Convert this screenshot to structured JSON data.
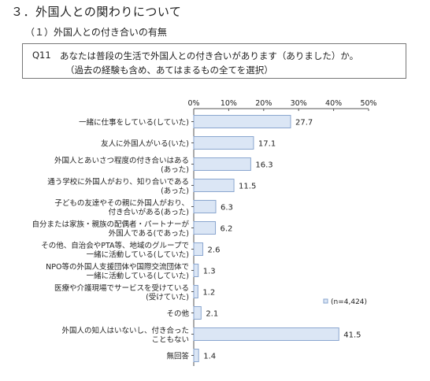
{
  "section_title": "３．外国人との関わりについて",
  "subsection_title": "（１）外国人との付き合いの有無",
  "question": {
    "number": "Q11",
    "text": "あなたは普段の生活で外国人との付き合いがあります（ありました）か。",
    "note": "（過去の経験も含め、あてはまるもの全てを選択）"
  },
  "chart_data": {
    "type": "bar",
    "orientation": "horizontal",
    "categories": [
      [
        "一緒に仕事をしている(していた)"
      ],
      [
        "友人に外国人がいる(いた)"
      ],
      [
        "外国人とあいさつ程度の付き合いはある",
        "(あった)"
      ],
      [
        "通う学校に外国人がおり、知り合いである",
        "(あった)"
      ],
      [
        "子どもの友達やその親に外国人がおり、",
        "付き合いがある(あった)"
      ],
      [
        "自分または家族・親族の配偶者・パートナーが",
        "外国人である(であった)"
      ],
      [
        "その他、自治会やPTA等、地域のグループで",
        "一緒に活動している(していた)"
      ],
      [
        "NPO等の外国人支援団体や国際交流団体で",
        "一緒に活動している(していた)"
      ],
      [
        "医療や介護現場でサービスを受けている",
        "(受けていた)"
      ],
      [
        "その他"
      ],
      [
        "外国人の知人はいないし、付き合った",
        "こともない"
      ],
      [
        "無回答"
      ]
    ],
    "values": [
      27.7,
      17.1,
      16.3,
      11.5,
      6.3,
      6.2,
      2.6,
      1.3,
      1.2,
      2.1,
      41.5,
      1.4
    ],
    "value_labels": [
      "27.7",
      "17.1",
      "16.3",
      "11.5",
      "6.3",
      "6.2",
      "2.6",
      "1.3",
      "1.2",
      "2.1",
      "41.5",
      "1.4"
    ],
    "x_ticks": [
      "0%",
      "10%",
      "20%",
      "30%",
      "40%",
      "50%"
    ],
    "xlim": [
      0,
      50
    ],
    "legend": "(n=4,424)",
    "legend_position": "right",
    "bar_color": "#dbe6f5",
    "bar_border": "#8aa6cf",
    "grid": false
  }
}
